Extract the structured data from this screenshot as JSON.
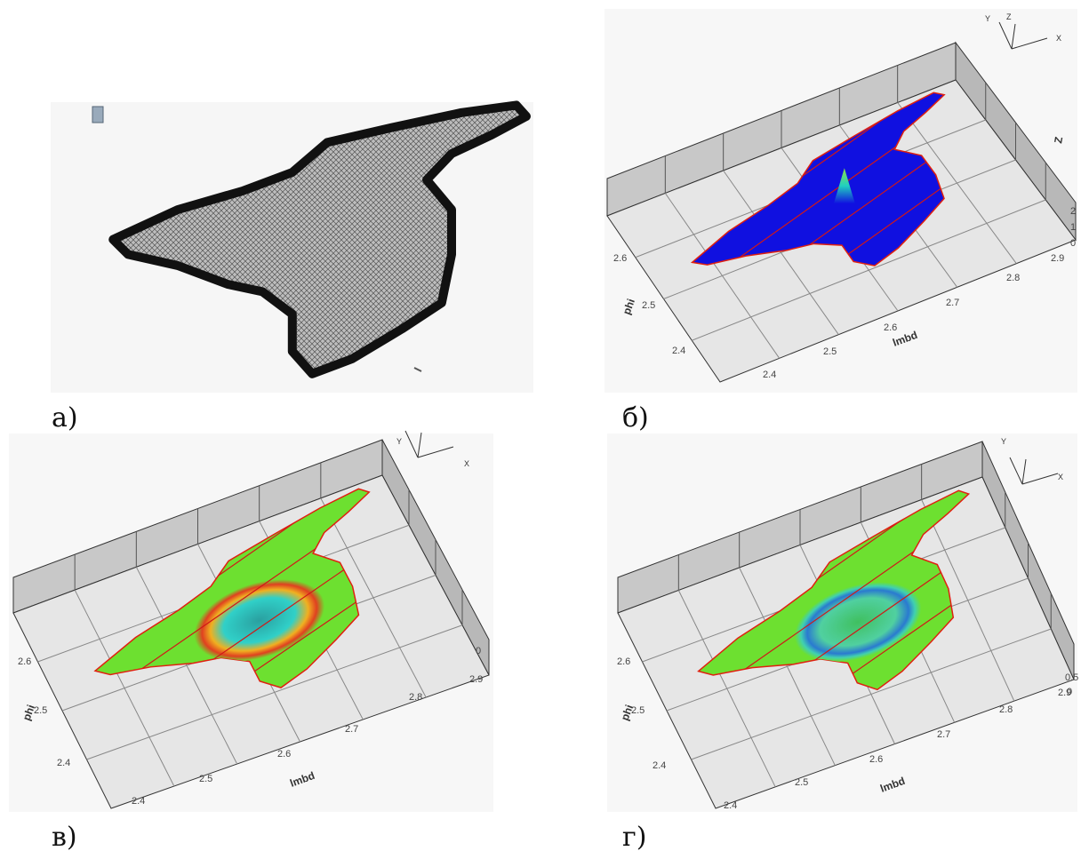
{
  "panels": [
    {
      "label": "а)"
    },
    {
      "label": "б)",
      "x_title": "lmbd",
      "y_title": "phi",
      "z_title": "Z",
      "x_ticks": [
        "2.4",
        "2.5",
        "2.6",
        "2.7",
        "2.8",
        "2.9"
      ],
      "y_ticks": [
        "2.6",
        "2.5",
        "2.4"
      ],
      "z_ticks": [
        "0",
        "1",
        "2"
      ],
      "triad": [
        "Y",
        "Z",
        "X"
      ]
    },
    {
      "label": "в)",
      "x_title": "lmbd",
      "y_title": "phi",
      "x_ticks": [
        "2.4",
        "2.5",
        "2.6",
        "2.7",
        "2.8",
        "2.9"
      ],
      "y_ticks": [
        "2.6",
        "2.5",
        "2.4"
      ],
      "z_ticks": [
        "0"
      ],
      "triad": [
        "Y",
        "X"
      ]
    },
    {
      "label": "г)",
      "x_title": "lmbd",
      "y_title": "phi",
      "x_ticks": [
        "2.4",
        "2.5",
        "2.6",
        "2.7",
        "2.8",
        "2.9"
      ],
      "y_ticks": [
        "2.6",
        "2.5",
        "2.4"
      ],
      "z_ticks": [
        "0.5",
        "0"
      ],
      "triad": [
        "Y",
        "X"
      ]
    }
  ]
}
